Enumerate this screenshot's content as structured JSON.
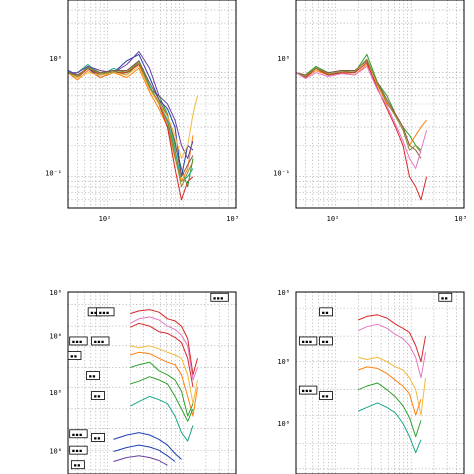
{
  "figure": {
    "panels": [
      {
        "ylabel": "",
        "xtick_labels": [
          "10²",
          "10³"
        ],
        "ytick_labels": [
          "10⁰",
          "10⁻¹"
        ],
        "annotations": []
      },
      {
        "ylabel": "",
        "xtick_labels": [
          "10²",
          "10³"
        ],
        "ytick_labels": [
          "10⁰",
          "10⁻¹"
        ],
        "annotations": []
      },
      {
        "ylabel": "",
        "xtick_labels": [],
        "ytick_labels": [
          "10⁰",
          "10⁰",
          "10⁰",
          "10⁰"
        ],
        "annotations": [
          "▪▪",
          "▪▪▪",
          "▪▪▪",
          "▪▪",
          "▪▪▪",
          "▪▪",
          "▪▪",
          "▪▪▪",
          "▪▪",
          "▪▪▪",
          "▪▪",
          "▪▪▪"
        ]
      },
      {
        "ylabel": "",
        "xtick_labels": [],
        "ytick_labels": [
          "10⁰",
          "10⁰",
          "10⁰"
        ],
        "annotations": [
          "▪▪",
          "▪▪▪",
          "▪▪",
          "▪▪▪",
          "▪▪",
          "▪▪"
        ]
      }
    ]
  },
  "colors": {
    "red": "#d62728",
    "pink": "#e377c2",
    "orange": "#ff7f0e",
    "yellow": "#f2b93b",
    "green": "#2ca02c",
    "teal": "#17a589",
    "blue": "#1f3fb4",
    "purple": "#6b3fa0",
    "brown": "#8c564b",
    "olive": "#8c8c2c"
  },
  "chart_data": [
    {
      "type": "line",
      "xscale": "log",
      "yscale": "log",
      "grid": true,
      "xlim": [
        30,
        5000
      ],
      "ylim": [
        0.05,
        5
      ],
      "series": [
        {
          "color_key": "green",
          "x": [
            30,
            40,
            55,
            80,
            120,
            180,
            260,
            360,
            480,
            620,
            780,
            950,
            1150,
            1350
          ],
          "y": [
            1.0,
            0.9,
            1.15,
            1.0,
            1.05,
            0.95,
            1.25,
            0.7,
            0.6,
            0.4,
            0.2,
            0.12,
            0.08,
            0.15
          ]
        },
        {
          "color_key": "blue",
          "x": [
            30,
            40,
            55,
            80,
            120,
            180,
            260,
            360,
            480,
            620,
            780,
            950,
            1150,
            1350
          ],
          "y": [
            1.05,
            0.95,
            1.1,
            0.9,
            1.0,
            1.3,
            1.5,
            0.9,
            0.55,
            0.45,
            0.3,
            0.1,
            0.2,
            0.18
          ]
        },
        {
          "color_key": "teal",
          "x": [
            30,
            40,
            55,
            80,
            120,
            180,
            260,
            360,
            480,
            620,
            780,
            950,
            1150,
            1350
          ],
          "y": [
            1.0,
            1.0,
            1.2,
            0.95,
            1.1,
            1.0,
            1.3,
            0.75,
            0.5,
            0.35,
            0.18,
            0.09,
            0.1,
            0.12
          ]
        },
        {
          "color_key": "orange",
          "x": [
            30,
            40,
            55,
            80,
            120,
            180,
            260,
            360,
            480,
            620,
            780,
            950,
            1150,
            1350
          ],
          "y": [
            1.0,
            0.85,
            1.05,
            0.9,
            1.0,
            0.9,
            1.1,
            0.65,
            0.45,
            0.3,
            0.15,
            0.09,
            0.12,
            0.25
          ]
        },
        {
          "color_key": "red",
          "x": [
            30,
            40,
            55,
            80,
            120,
            180,
            260,
            360,
            480,
            620,
            780,
            950,
            1150,
            1350
          ],
          "y": [
            1.0,
            0.9,
            1.1,
            0.95,
            1.0,
            1.0,
            1.2,
            0.7,
            0.5,
            0.3,
            0.12,
            0.06,
            0.09,
            0.1
          ]
        },
        {
          "color_key": "purple",
          "x": [
            30,
            40,
            55,
            80,
            120,
            180,
            260,
            360,
            480,
            620,
            780,
            950,
            1150,
            1350
          ],
          "y": [
            1.0,
            1.0,
            1.15,
            1.05,
            1.0,
            1.2,
            1.6,
            1.1,
            0.6,
            0.5,
            0.35,
            0.2,
            0.15,
            0.22
          ]
        },
        {
          "color_key": "brown",
          "x": [
            30,
            40,
            55,
            80,
            120,
            180,
            260,
            360,
            480,
            620,
            780,
            950,
            1150,
            1350
          ],
          "y": [
            1.0,
            0.95,
            1.1,
            1.0,
            1.05,
            1.05,
            1.3,
            0.8,
            0.55,
            0.38,
            0.22,
            0.1,
            0.13,
            0.16
          ]
        },
        {
          "color_key": "yellow",
          "x": [
            30,
            40,
            55,
            80,
            120,
            180,
            260,
            360,
            480,
            620,
            780,
            950,
            1150,
            1350,
            1550
          ],
          "y": [
            1.0,
            0.9,
            1.0,
            0.95,
            1.0,
            0.95,
            1.15,
            0.7,
            0.5,
            0.38,
            0.25,
            0.15,
            0.2,
            0.4,
            0.6
          ]
        },
        {
          "color_key": "olive",
          "x": [
            30,
            40,
            55,
            80,
            120,
            180,
            260,
            360,
            480,
            620,
            780,
            950,
            1150,
            1350
          ],
          "y": [
            1.0,
            0.92,
            1.12,
            0.97,
            1.02,
            1.02,
            1.25,
            0.72,
            0.52,
            0.33,
            0.16,
            0.08,
            0.11,
            0.14
          ]
        }
      ]
    },
    {
      "type": "line",
      "xscale": "log",
      "yscale": "log",
      "grid": true,
      "xlim": [
        30,
        5000
      ],
      "ylim": [
        0.05,
        5
      ],
      "series": [
        {
          "color_key": "green",
          "x": [
            30,
            40,
            55,
            80,
            120,
            180,
            260,
            360,
            480,
            620,
            780,
            950,
            1150,
            1350
          ],
          "y": [
            1.0,
            0.95,
            1.15,
            1.0,
            1.05,
            1.0,
            1.5,
            0.8,
            0.6,
            0.4,
            0.3,
            0.25,
            0.2,
            0.18
          ]
        },
        {
          "color_key": "orange",
          "x": [
            30,
            40,
            55,
            80,
            120,
            180,
            260,
            360,
            480,
            620,
            780,
            950,
            1150,
            1350,
            1600
          ],
          "y": [
            1.0,
            0.9,
            1.05,
            0.95,
            1.0,
            0.95,
            1.2,
            0.75,
            0.5,
            0.4,
            0.3,
            0.2,
            0.25,
            0.3,
            0.35
          ]
        },
        {
          "color_key": "red",
          "x": [
            30,
            40,
            55,
            80,
            120,
            180,
            260,
            360,
            480,
            620,
            780,
            950,
            1150,
            1350,
            1600
          ],
          "y": [
            1.0,
            0.9,
            1.1,
            0.95,
            1.0,
            1.0,
            1.25,
            0.7,
            0.45,
            0.3,
            0.2,
            0.1,
            0.08,
            0.06,
            0.1
          ]
        },
        {
          "color_key": "brown",
          "x": [
            30,
            40,
            55,
            80,
            120,
            180,
            260,
            360,
            480,
            620,
            780,
            950,
            1150,
            1350
          ],
          "y": [
            1.0,
            0.95,
            1.1,
            1.0,
            1.05,
            1.05,
            1.3,
            0.8,
            0.55,
            0.4,
            0.3,
            0.2,
            0.18,
            0.15
          ]
        },
        {
          "color_key": "olive",
          "x": [
            30,
            40,
            55,
            80,
            120,
            180,
            260,
            360,
            480,
            620,
            780,
            950,
            1150,
            1350
          ],
          "y": [
            1.0,
            0.92,
            1.12,
            0.97,
            1.02,
            1.02,
            1.35,
            0.78,
            0.52,
            0.38,
            0.28,
            0.18,
            0.2,
            0.17
          ]
        },
        {
          "color_key": "pink",
          "x": [
            30,
            40,
            55,
            80,
            120,
            180,
            260,
            360,
            480,
            620,
            780,
            950,
            1150,
            1350,
            1600
          ],
          "y": [
            1.0,
            0.88,
            1.0,
            0.92,
            0.98,
            0.95,
            1.15,
            0.68,
            0.48,
            0.32,
            0.22,
            0.15,
            0.12,
            0.18,
            0.28
          ]
        }
      ]
    },
    {
      "type": "line",
      "xscale": "log",
      "yscale": "log",
      "grid": true,
      "xlim": [
        30,
        5000
      ],
      "ylim": [
        8e-05,
        2
      ],
      "series": [
        {
          "color_key": "red",
          "x": [
            200,
            260,
            360,
            480,
            620,
            780,
            950,
            1150,
            1350,
            1550
          ],
          "y": [
            0.6,
            0.7,
            0.75,
            0.65,
            0.45,
            0.4,
            0.3,
            0.15,
            0.02,
            0.05
          ]
        },
        {
          "color_key": "pink",
          "x": [
            200,
            260,
            360,
            480,
            620,
            780,
            950,
            1150,
            1350,
            1550
          ],
          "y": [
            0.35,
            0.45,
            0.5,
            0.42,
            0.3,
            0.25,
            0.18,
            0.1,
            0.015,
            0.03
          ]
        },
        {
          "color_key": "red",
          "x": [
            200,
            260,
            360,
            480,
            620,
            780,
            950,
            1150,
            1350
          ],
          "y": [
            0.28,
            0.35,
            0.3,
            0.22,
            0.2,
            0.16,
            0.12,
            0.05,
            0.01
          ]
        },
        {
          "color_key": "yellow",
          "x": [
            200,
            260,
            360,
            480,
            620,
            780,
            950,
            1150,
            1350,
            1550
          ],
          "y": [
            0.1,
            0.09,
            0.1,
            0.085,
            0.07,
            0.06,
            0.05,
            0.02,
            0.004,
            0.015
          ]
        },
        {
          "color_key": "orange",
          "x": [
            200,
            260,
            360,
            480,
            620,
            780,
            950,
            1150,
            1350,
            1550
          ],
          "y": [
            0.06,
            0.07,
            0.065,
            0.05,
            0.04,
            0.035,
            0.02,
            0.006,
            0.002,
            0.01
          ]
        },
        {
          "color_key": "green",
          "x": [
            200,
            260,
            360,
            480,
            620,
            780,
            950,
            1150,
            1350
          ],
          "y": [
            0.03,
            0.035,
            0.04,
            0.025,
            0.02,
            0.015,
            0.008,
            0.002,
            0.004
          ]
        },
        {
          "color_key": "green",
          "x": [
            200,
            260,
            360,
            480,
            620,
            780,
            950,
            1150,
            1350
          ],
          "y": [
            0.012,
            0.014,
            0.018,
            0.015,
            0.012,
            0.006,
            0.003,
            0.0015,
            0.003
          ]
        },
        {
          "color_key": "teal",
          "x": [
            200,
            260,
            360,
            480,
            620,
            780,
            950,
            1150,
            1350
          ],
          "y": [
            0.0035,
            0.0045,
            0.006,
            0.005,
            0.004,
            0.002,
            0.0008,
            0.0005,
            0.0012
          ]
        },
        {
          "color_key": "blue",
          "x": [
            120,
            180,
            260,
            360,
            480,
            620,
            780,
            950
          ],
          "y": [
            0.00055,
            0.0007,
            0.0008,
            0.0007,
            0.00055,
            0.0004,
            0.00025,
            0.00018
          ]
        },
        {
          "color_key": "blue",
          "x": [
            120,
            180,
            260,
            360,
            480,
            620,
            780
          ],
          "y": [
            0.00028,
            0.00035,
            0.0004,
            0.00036,
            0.0003,
            0.00022,
            0.00016
          ]
        },
        {
          "color_key": "purple",
          "x": [
            120,
            180,
            260,
            360,
            480,
            620
          ],
          "y": [
            0.00016,
            0.0002,
            0.00022,
            0.0002,
            0.00017,
            0.00013
          ]
        }
      ]
    },
    {
      "type": "line",
      "xscale": "log",
      "yscale": "log",
      "grid": true,
      "xlim": [
        30,
        5000
      ],
      "ylim": [
        0.0008,
        2
      ],
      "series": [
        {
          "color_key": "red",
          "x": [
            200,
            260,
            360,
            480,
            620,
            780,
            950,
            1150,
            1350,
            1550
          ],
          "y": [
            0.6,
            0.7,
            0.75,
            0.65,
            0.5,
            0.42,
            0.35,
            0.2,
            0.1,
            0.3
          ]
        },
        {
          "color_key": "pink",
          "x": [
            200,
            260,
            360,
            480,
            620,
            780,
            950,
            1150,
            1350,
            1550
          ],
          "y": [
            0.38,
            0.45,
            0.5,
            0.42,
            0.32,
            0.27,
            0.2,
            0.12,
            0.05,
            0.15
          ]
        },
        {
          "color_key": "yellow",
          "x": [
            200,
            260,
            360,
            480,
            620,
            780,
            950,
            1150,
            1350,
            1550
          ],
          "y": [
            0.12,
            0.11,
            0.12,
            0.1,
            0.08,
            0.07,
            0.05,
            0.03,
            0.01,
            0.05
          ]
        },
        {
          "color_key": "orange",
          "x": [
            200,
            260,
            360,
            480,
            620,
            780,
            950,
            1150,
            1350
          ],
          "y": [
            0.07,
            0.08,
            0.075,
            0.06,
            0.045,
            0.035,
            0.025,
            0.01,
            0.02
          ]
        },
        {
          "color_key": "green",
          "x": [
            200,
            260,
            360,
            480,
            620,
            780,
            950,
            1150,
            1350
          ],
          "y": [
            0.03,
            0.035,
            0.04,
            0.03,
            0.022,
            0.015,
            0.009,
            0.004,
            0.008
          ]
        },
        {
          "color_key": "teal",
          "x": [
            200,
            260,
            360,
            480,
            620,
            780,
            950,
            1150,
            1350
          ],
          "y": [
            0.012,
            0.014,
            0.017,
            0.014,
            0.011,
            0.007,
            0.004,
            0.002,
            0.0035
          ]
        }
      ]
    }
  ]
}
